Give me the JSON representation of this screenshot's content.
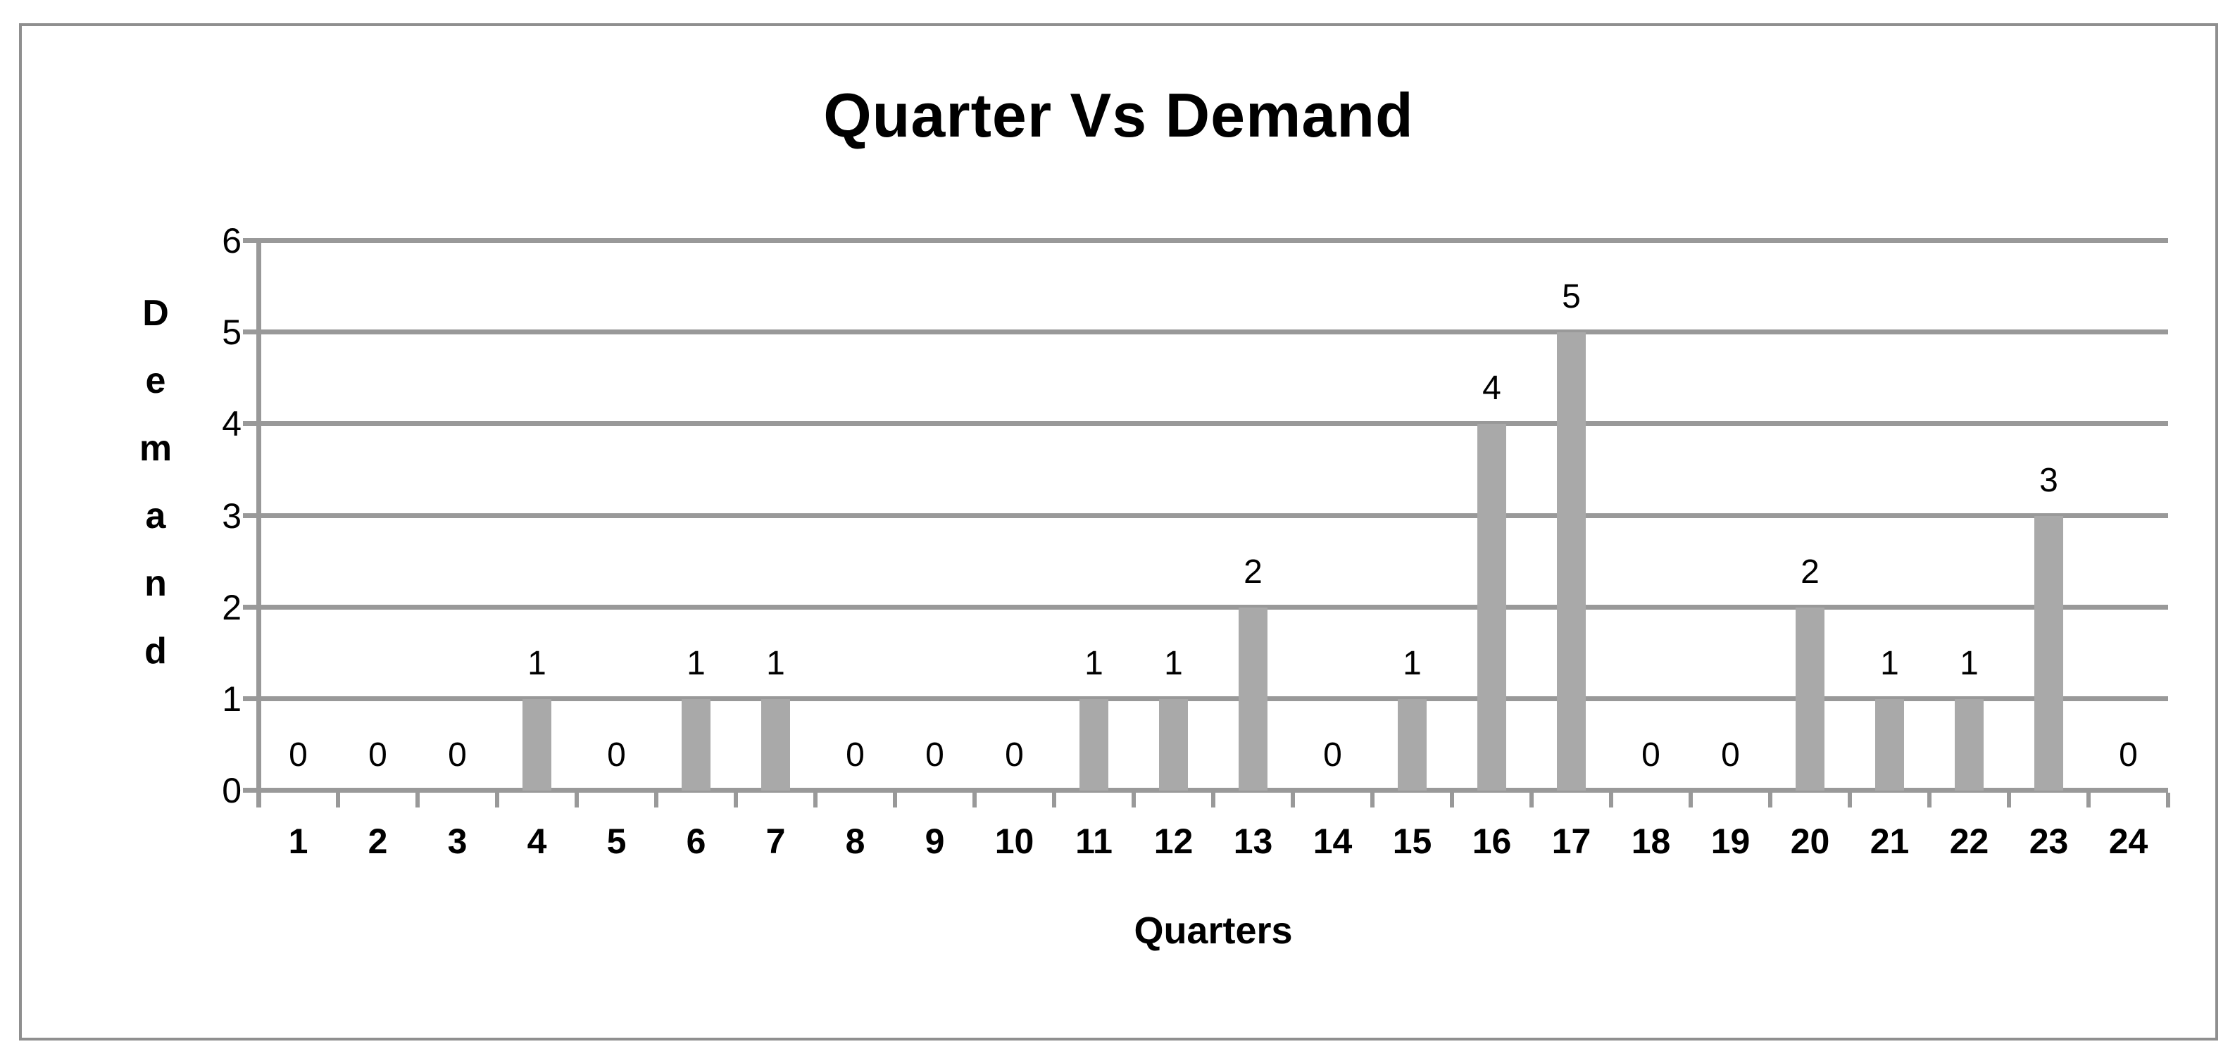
{
  "chart_data": {
    "type": "bar",
    "title": "Quarter Vs Demand",
    "xlabel": "Quarters",
    "ylabel": "Demand",
    "categories": [
      "1",
      "2",
      "3",
      "4",
      "5",
      "6",
      "7",
      "8",
      "9",
      "10",
      "11",
      "12",
      "13",
      "14",
      "15",
      "16",
      "17",
      "18",
      "19",
      "20",
      "21",
      "22",
      "23",
      "24"
    ],
    "values": [
      0,
      0,
      0,
      1,
      0,
      1,
      1,
      0,
      0,
      0,
      1,
      1,
      2,
      0,
      1,
      4,
      5,
      0,
      0,
      2,
      1,
      1,
      3,
      0
    ],
    "yticks": [
      0,
      1,
      2,
      3,
      4,
      5,
      6
    ],
    "ylim": [
      0,
      6
    ],
    "grid": true,
    "legend": false,
    "data_labels_shown": true,
    "colors": {
      "bar": "#a9a9a9",
      "gridline": "#999999",
      "axis": "#999999",
      "frame_border": "#8f8f8f",
      "text": "#000000"
    }
  }
}
